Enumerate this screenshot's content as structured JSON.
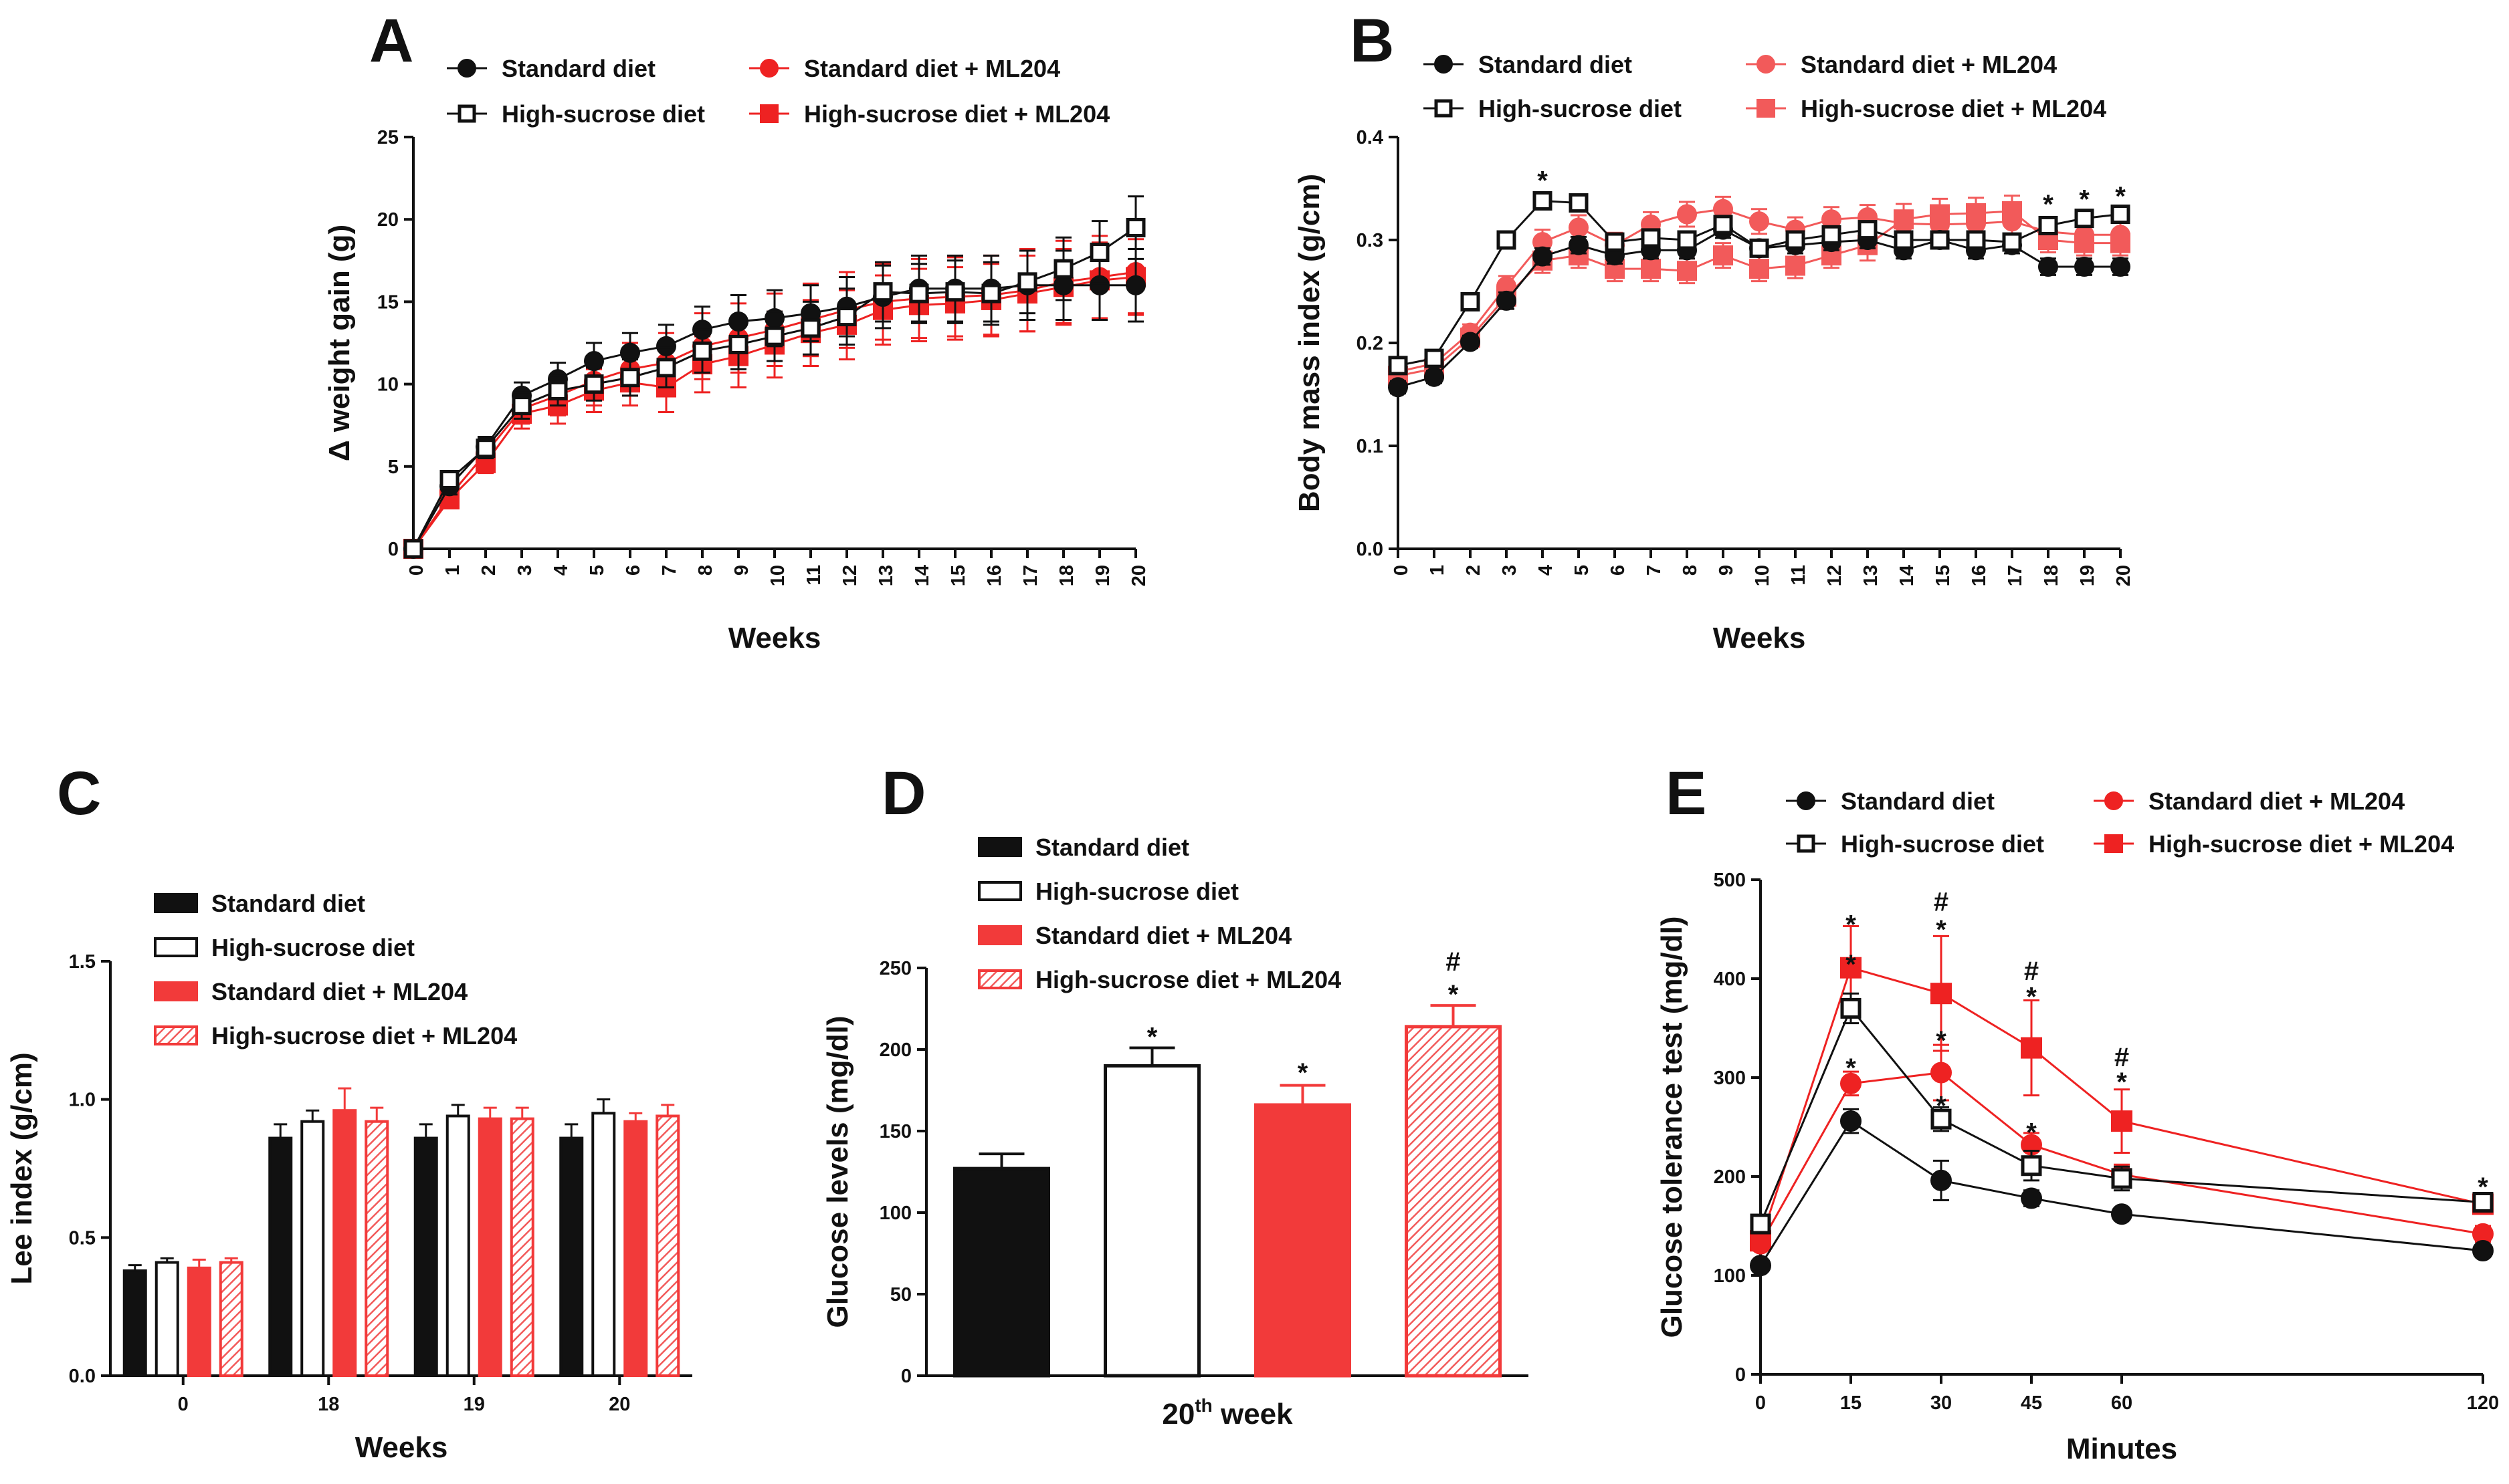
{
  "colors": {
    "black": "#111111",
    "red": "#ee2222",
    "pink": "#f25a5a",
    "bar_red": "#f23a3a"
  },
  "chart_data": [
    {
      "id": "A",
      "panel_label": "A",
      "type": "line",
      "xlabel": "Weeks",
      "ylabel": "Δ weight gain (g)",
      "ylim": [
        0,
        25
      ],
      "yticks": [
        "0",
        "5",
        "10",
        "15",
        "20",
        "25"
      ],
      "x": [
        0,
        1,
        2,
        3,
        4,
        5,
        6,
        7,
        8,
        9,
        10,
        11,
        12,
        13,
        14,
        15,
        16,
        17,
        18,
        19,
        20
      ],
      "xticklabels": [
        "0",
        "1",
        "2",
        "3",
        "4",
        "5",
        "6",
        "7",
        "8",
        "9",
        "10",
        "11",
        "12",
        "13",
        "14",
        "15",
        "16",
        "17",
        "18",
        "19",
        "20"
      ],
      "series": [
        {
          "name": "Standard diet + ML204",
          "color": "#ee2222",
          "marker": "circle-filled",
          "values": [
            0,
            3.2,
            5.8,
            8.5,
            9.3,
            10.2,
            10.9,
            11.3,
            12.3,
            12.8,
            13.3,
            13.9,
            14.5,
            15.0,
            15.2,
            15.3,
            15.4,
            15.7,
            16.2,
            16.5,
            16.8
          ],
          "err": [
            0,
            0.4,
            0.5,
            0.9,
            1.2,
            1.5,
            1.6,
            1.8,
            2.0,
            2.1,
            2.2,
            2.2,
            2.3,
            2.3,
            2.4,
            2.4,
            2.4,
            2.5,
            2.5,
            2.5,
            2.5
          ]
        },
        {
          "name": "High-sucrose diet + ML204",
          "color": "#ee2222",
          "marker": "square-filled",
          "values": [
            0,
            3.0,
            5.2,
            8.2,
            8.7,
            9.6,
            10.1,
            9.8,
            11.2,
            11.7,
            12.4,
            13.1,
            13.6,
            14.5,
            14.8,
            14.9,
            15.1,
            15.5,
            15.9,
            16.3,
            16.5
          ],
          "err": [
            0,
            0.4,
            0.6,
            0.9,
            1.1,
            1.3,
            1.4,
            1.5,
            1.7,
            1.9,
            2.0,
            2.0,
            2.1,
            2.1,
            2.2,
            2.2,
            2.2,
            2.3,
            2.3,
            2.3,
            2.3
          ]
        },
        {
          "name": "Standard diet",
          "color": "#111111",
          "marker": "circle-filled",
          "values": [
            0,
            3.8,
            6.2,
            9.3,
            10.3,
            11.4,
            11.9,
            12.3,
            13.3,
            13.8,
            14.0,
            14.3,
            14.7,
            15.3,
            15.8,
            15.8,
            15.8,
            16.0,
            16.0,
            16.0,
            16.0
          ],
          "err": [
            0,
            0.5,
            0.6,
            0.8,
            1.0,
            1.1,
            1.2,
            1.3,
            1.4,
            1.6,
            1.7,
            1.7,
            1.8,
            1.9,
            2.0,
            2.0,
            2.0,
            2.1,
            2.1,
            2.1,
            2.2
          ]
        },
        {
          "name": "High-sucrose diet",
          "color": "#111111",
          "marker": "square-open",
          "values": [
            0,
            4.2,
            6.1,
            8.7,
            9.6,
            10.0,
            10.4,
            11.0,
            12.0,
            12.4,
            12.9,
            13.4,
            14.1,
            15.6,
            15.5,
            15.6,
            15.5,
            16.2,
            17.0,
            18.0,
            19.5
          ],
          "err": [
            0,
            0.5,
            0.6,
            0.8,
            0.9,
            1.0,
            1.1,
            1.2,
            1.3,
            1.5,
            1.5,
            1.6,
            1.7,
            1.8,
            1.8,
            1.9,
            1.9,
            1.9,
            1.9,
            1.9,
            1.9
          ]
        }
      ],
      "annotations": []
    },
    {
      "id": "B",
      "panel_label": "B",
      "type": "line",
      "xlabel": "Weeks",
      "ylabel": "Body mass index (g/cm)",
      "ylim": [
        0,
        0.4
      ],
      "yticks": [
        "0.0",
        "0.1",
        "0.2",
        "0.3",
        "0.4"
      ],
      "x": [
        0,
        1,
        2,
        3,
        4,
        5,
        6,
        7,
        8,
        9,
        10,
        11,
        12,
        13,
        14,
        15,
        16,
        17,
        18,
        19,
        20
      ],
      "xticklabels": [
        "0",
        "1",
        "2",
        "3",
        "4",
        "5",
        "6",
        "7",
        "8",
        "9",
        "10",
        "11",
        "12",
        "13",
        "14",
        "15",
        "16",
        "17",
        "18",
        "19",
        "20"
      ],
      "series": [
        {
          "name": "Standard diet + ML204",
          "color": "#f25a5a",
          "marker": "circle-filled",
          "values": [
            0.172,
            0.18,
            0.21,
            0.255,
            0.298,
            0.312,
            0.295,
            0.315,
            0.325,
            0.33,
            0.318,
            0.31,
            0.32,
            0.322,
            0.316,
            0.315,
            0.316,
            0.318,
            0.308,
            0.305,
            0.305
          ],
          "err": [
            0.006,
            0.008,
            0.008,
            0.01,
            0.012,
            0.012,
            0.012,
            0.012,
            0.012,
            0.012,
            0.012,
            0.012,
            0.012,
            0.012,
            0.012,
            0.012,
            0.012,
            0.012,
            0.012,
            0.012,
            0.012
          ]
        },
        {
          "name": "High-sucrose diet + ML204",
          "color": "#f25a5a",
          "marker": "square-filled",
          "values": [
            0.168,
            0.175,
            0.205,
            0.245,
            0.28,
            0.285,
            0.272,
            0.272,
            0.27,
            0.285,
            0.272,
            0.275,
            0.285,
            0.295,
            0.32,
            0.325,
            0.326,
            0.328,
            0.3,
            0.297,
            0.297
          ],
          "err": [
            0.006,
            0.008,
            0.008,
            0.012,
            0.012,
            0.012,
            0.012,
            0.012,
            0.012,
            0.012,
            0.012,
            0.012,
            0.012,
            0.015,
            0.015,
            0.015,
            0.015,
            0.015,
            0.012,
            0.012,
            0.012
          ]
        },
        {
          "name": "Standard diet",
          "color": "#111111",
          "marker": "circle-filled",
          "values": [
            0.157,
            0.167,
            0.201,
            0.241,
            0.284,
            0.295,
            0.285,
            0.29,
            0.29,
            0.31,
            0.292,
            0.295,
            0.298,
            0.3,
            0.29,
            0.3,
            0.29,
            0.295,
            0.274,
            0.274,
            0.274
          ],
          "err": [
            0.006,
            0.006,
            0.006,
            0.008,
            0.008,
            0.008,
            0.008,
            0.008,
            0.008,
            0.008,
            0.008,
            0.008,
            0.008,
            0.008,
            0.008,
            0.008,
            0.008,
            0.008,
            0.008,
            0.008,
            0.008
          ]
        },
        {
          "name": "High-sucrose diet",
          "color": "#111111",
          "marker": "square-open",
          "values": [
            0.178,
            0.185,
            0.24,
            0.3,
            0.338,
            0.336,
            0.298,
            0.302,
            0.3,
            0.315,
            0.292,
            0.3,
            0.305,
            0.31,
            0.3,
            0.3,
            0.3,
            0.298,
            0.314,
            0.321,
            0.325
          ],
          "err": [
            0.006,
            0.006,
            0.006,
            0.008,
            0.008,
            0.008,
            0.008,
            0.008,
            0.008,
            0.008,
            0.008,
            0.008,
            0.008,
            0.008,
            0.008,
            0.008,
            0.008,
            0.008,
            0.008,
            0.008,
            0.008
          ]
        }
      ],
      "annotations": [
        {
          "x": 4,
          "y": 0.358,
          "text": "*"
        },
        {
          "x": 18,
          "y": 0.335,
          "text": "*"
        },
        {
          "x": 19,
          "y": 0.34,
          "text": "*"
        },
        {
          "x": 20,
          "y": 0.343,
          "text": "*"
        }
      ]
    },
    {
      "id": "C",
      "panel_label": "C",
      "type": "bar",
      "xlabel": "Weeks",
      "ylabel": "Lee index (g/cm)",
      "ylim": [
        0,
        1.5
      ],
      "yticks": [
        "0.0",
        "0.5",
        "1.0",
        "1.5"
      ],
      "categories": [
        "0",
        "18",
        "19",
        "20"
      ],
      "series": [
        {
          "name": "Standard diet",
          "fill": "#111111",
          "stroke": "#111111",
          "style": "solid",
          "values": [
            0.38,
            0.86,
            0.86,
            0.86
          ],
          "err": [
            0.02,
            0.05,
            0.05,
            0.05
          ]
        },
        {
          "name": "High-sucrose diet",
          "fill": "#ffffff",
          "stroke": "#111111",
          "style": "open",
          "values": [
            0.41,
            0.92,
            0.94,
            0.95
          ],
          "err": [
            0.015,
            0.04,
            0.04,
            0.05
          ]
        },
        {
          "name": "Standard diet + ML204",
          "fill": "#f23a3a",
          "stroke": "#f23a3a",
          "style": "solid",
          "values": [
            0.39,
            0.96,
            0.93,
            0.92
          ],
          "err": [
            0.03,
            0.08,
            0.04,
            0.03
          ]
        },
        {
          "name": "High-sucrose diet + ML204",
          "fill": "#f23a3a",
          "stroke": "#f23a3a",
          "style": "hatch",
          "values": [
            0.41,
            0.92,
            0.93,
            0.94
          ],
          "err": [
            0.015,
            0.05,
            0.04,
            0.04
          ]
        }
      ],
      "annotations": []
    },
    {
      "id": "D",
      "panel_label": "D",
      "type": "bar",
      "xlabel_main": "20",
      "xlabel_sup": "th",
      "xlabel_tail": " week",
      "ylabel": "Glucose levels (mg/dl)",
      "ylim": [
        0,
        250
      ],
      "yticks": [
        "0",
        "50",
        "100",
        "150",
        "200",
        "250"
      ],
      "categories": [
        "Standard diet",
        "High-sucrose diet",
        "Standard diet + ML204",
        "High-sucrose diet + ML204"
      ],
      "bars": [
        {
          "name": "Standard diet",
          "fill": "#111111",
          "stroke": "#111111",
          "style": "solid",
          "value": 127,
          "err": 9
        },
        {
          "name": "High-sucrose diet",
          "fill": "#ffffff",
          "stroke": "#111111",
          "style": "open",
          "value": 190,
          "err": 11
        },
        {
          "name": "Standard diet + ML204",
          "fill": "#f23a3a",
          "stroke": "#f23a3a",
          "style": "solid",
          "value": 166,
          "err": 12
        },
        {
          "name": "High-sucrose diet + ML204",
          "fill": "#f23a3a",
          "stroke": "#f23a3a",
          "style": "hatch",
          "value": 214,
          "err": 13
        }
      ],
      "annotations": [
        {
          "bar": 1,
          "y": 208,
          "text": "*"
        },
        {
          "bar": 2,
          "y": 186,
          "text": "*"
        },
        {
          "bar": 3,
          "y": 234,
          "text": "*"
        },
        {
          "bar": 3,
          "y": 254,
          "text": "#"
        }
      ]
    },
    {
      "id": "E",
      "panel_label": "E",
      "type": "line",
      "xlabel": "Minutes",
      "ylabel": "Glucose tolerance test (mg/dl)",
      "ylim": [
        0,
        500
      ],
      "yticks": [
        "0",
        "100",
        "200",
        "300",
        "400",
        "500"
      ],
      "xlim": [
        0,
        120
      ],
      "x": [
        0,
        15,
        30,
        45,
        60,
        120
      ],
      "xticklabels": [
        "0",
        "15",
        "30",
        "45",
        "60",
        "120"
      ],
      "series": [
        {
          "name": "Standard diet + ML204",
          "color": "#ee2222",
          "marker": "circle-filled",
          "values": [
            132,
            294,
            305,
            232,
            202,
            142
          ],
          "err": [
            5,
            12,
            28,
            12,
            10,
            8
          ]
        },
        {
          "name": "High-sucrose diet + ML204",
          "color": "#ee2222",
          "marker": "square-filled",
          "values": [
            135,
            411,
            385,
            330,
            256,
            172
          ],
          "err": [
            5,
            42,
            58,
            48,
            32,
            8
          ]
        },
        {
          "name": "Standard diet",
          "color": "#111111",
          "marker": "circle-filled",
          "values": [
            110,
            256,
            196,
            178,
            162,
            125
          ],
          "err": [
            5,
            12,
            20,
            8,
            6,
            5
          ]
        },
        {
          "name": "High-sucrose diet",
          "color": "#111111",
          "marker": "square-open",
          "values": [
            152,
            370,
            258,
            211,
            198,
            174
          ],
          "err": [
            5,
            15,
            12,
            15,
            12,
            8
          ]
        }
      ],
      "annotations": [
        {
          "x": 15,
          "y": 455,
          "text": "*"
        },
        {
          "x": 15,
          "y": 415,
          "text": "*"
        },
        {
          "x": 15,
          "y": 310,
          "text": "*"
        },
        {
          "x": 30,
          "y": 450,
          "text": "*"
        },
        {
          "x": 30,
          "y": 478,
          "text": "#"
        },
        {
          "x": 30,
          "y": 338,
          "text": "*"
        },
        {
          "x": 30,
          "y": 272,
          "text": "*"
        },
        {
          "x": 45,
          "y": 382,
          "text": "*"
        },
        {
          "x": 45,
          "y": 408,
          "text": "#"
        },
        {
          "x": 45,
          "y": 245,
          "text": "*"
        },
        {
          "x": 60,
          "y": 296,
          "text": "*"
        },
        {
          "x": 60,
          "y": 321,
          "text": "#"
        },
        {
          "x": 120,
          "y": 190,
          "text": "*"
        }
      ]
    }
  ],
  "legends": {
    "lines": [
      "Standard diet",
      "High-sucrose diet",
      "Standard diet + ML204",
      "High-sucrose diet + ML204"
    ],
    "bars": [
      "Standard diet",
      "High-sucrose diet",
      "Standard diet + ML204",
      "High-sucrose diet + ML204"
    ]
  }
}
